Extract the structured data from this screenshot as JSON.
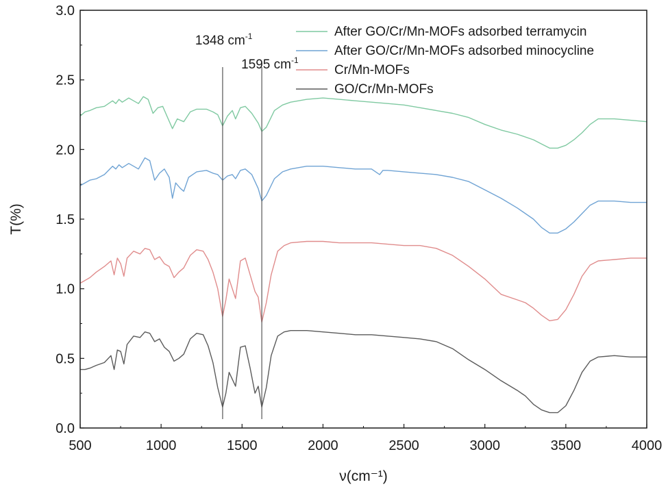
{
  "chart_data": {
    "type": "line",
    "title": "",
    "xlabel": "ν(cm⁻¹)",
    "ylabel": "T(%)",
    "xlim": [
      500,
      4000
    ],
    "ylim": [
      0.0,
      3.0
    ],
    "x_ticks": [
      "500",
      "1000",
      "1500",
      "2000",
      "2500",
      "3000",
      "3500",
      "4000"
    ],
    "y_ticks": [
      "0.0",
      "0.5",
      "1.0",
      "1.5",
      "2.0",
      "2.5",
      "3.0"
    ],
    "grid": false,
    "legend_position": "top-right",
    "annotations": [
      {
        "label": "1348 cm",
        "sup": "-1",
        "x": 1380
      },
      {
        "label": "1595 cm",
        "sup": "-1",
        "x": 1622
      }
    ],
    "series": [
      {
        "name": "After GO/Cr/Mn-MOFs adsorbed terramycin",
        "color": "#7fc9a1",
        "points": [
          [
            500,
            2.24
          ],
          [
            530,
            2.27
          ],
          [
            560,
            2.28
          ],
          [
            600,
            2.3
          ],
          [
            650,
            2.31
          ],
          [
            700,
            2.35
          ],
          [
            720,
            2.33
          ],
          [
            740,
            2.36
          ],
          [
            760,
            2.34
          ],
          [
            800,
            2.37
          ],
          [
            830,
            2.35
          ],
          [
            860,
            2.33
          ],
          [
            890,
            2.38
          ],
          [
            920,
            2.36
          ],
          [
            950,
            2.26
          ],
          [
            980,
            2.3
          ],
          [
            1010,
            2.31
          ],
          [
            1040,
            2.23
          ],
          [
            1070,
            2.15
          ],
          [
            1100,
            2.22
          ],
          [
            1140,
            2.2
          ],
          [
            1180,
            2.27
          ],
          [
            1220,
            2.29
          ],
          [
            1280,
            2.29
          ],
          [
            1320,
            2.27
          ],
          [
            1350,
            2.25
          ],
          [
            1380,
            2.17
          ],
          [
            1410,
            2.24
          ],
          [
            1440,
            2.28
          ],
          [
            1460,
            2.22
          ],
          [
            1490,
            2.3
          ],
          [
            1520,
            2.31
          ],
          [
            1560,
            2.26
          ],
          [
            1600,
            2.19
          ],
          [
            1622,
            2.13
          ],
          [
            1650,
            2.16
          ],
          [
            1700,
            2.28
          ],
          [
            1750,
            2.32
          ],
          [
            1800,
            2.34
          ],
          [
            1900,
            2.36
          ],
          [
            2000,
            2.37
          ],
          [
            2100,
            2.36
          ],
          [
            2200,
            2.35
          ],
          [
            2300,
            2.34
          ],
          [
            2400,
            2.33
          ],
          [
            2500,
            2.32
          ],
          [
            2600,
            2.3
          ],
          [
            2700,
            2.28
          ],
          [
            2800,
            2.26
          ],
          [
            2900,
            2.23
          ],
          [
            3000,
            2.18
          ],
          [
            3100,
            2.14
          ],
          [
            3200,
            2.11
          ],
          [
            3300,
            2.07
          ],
          [
            3350,
            2.04
          ],
          [
            3400,
            2.01
          ],
          [
            3450,
            2.01
          ],
          [
            3500,
            2.03
          ],
          [
            3550,
            2.07
          ],
          [
            3600,
            2.12
          ],
          [
            3650,
            2.18
          ],
          [
            3700,
            2.22
          ],
          [
            3800,
            2.22
          ],
          [
            3900,
            2.21
          ],
          [
            4000,
            2.2
          ]
        ]
      },
      {
        "name": "After GO/Cr/Mn-MOFs adsorbed minocycline",
        "color": "#6fa3d4",
        "points": [
          [
            500,
            1.74
          ],
          [
            530,
            1.76
          ],
          [
            560,
            1.78
          ],
          [
            600,
            1.79
          ],
          [
            650,
            1.82
          ],
          [
            700,
            1.88
          ],
          [
            720,
            1.86
          ],
          [
            740,
            1.89
          ],
          [
            760,
            1.87
          ],
          [
            800,
            1.9
          ],
          [
            830,
            1.88
          ],
          [
            860,
            1.86
          ],
          [
            900,
            1.94
          ],
          [
            930,
            1.92
          ],
          [
            960,
            1.78
          ],
          [
            990,
            1.83
          ],
          [
            1020,
            1.86
          ],
          [
            1050,
            1.8
          ],
          [
            1070,
            1.65
          ],
          [
            1090,
            1.76
          ],
          [
            1120,
            1.72
          ],
          [
            1140,
            1.7
          ],
          [
            1170,
            1.8
          ],
          [
            1220,
            1.84
          ],
          [
            1280,
            1.85
          ],
          [
            1320,
            1.83
          ],
          [
            1350,
            1.82
          ],
          [
            1380,
            1.78
          ],
          [
            1410,
            1.81
          ],
          [
            1440,
            1.82
          ],
          [
            1460,
            1.79
          ],
          [
            1490,
            1.85
          ],
          [
            1520,
            1.86
          ],
          [
            1560,
            1.82
          ],
          [
            1600,
            1.72
          ],
          [
            1622,
            1.63
          ],
          [
            1650,
            1.67
          ],
          [
            1700,
            1.79
          ],
          [
            1750,
            1.84
          ],
          [
            1800,
            1.86
          ],
          [
            1900,
            1.88
          ],
          [
            2000,
            1.88
          ],
          [
            2100,
            1.87
          ],
          [
            2200,
            1.86
          ],
          [
            2300,
            1.86
          ],
          [
            2350,
            1.82
          ],
          [
            2370,
            1.85
          ],
          [
            2400,
            1.85
          ],
          [
            2500,
            1.84
          ],
          [
            2600,
            1.83
          ],
          [
            2700,
            1.82
          ],
          [
            2800,
            1.8
          ],
          [
            2900,
            1.77
          ],
          [
            3000,
            1.71
          ],
          [
            3100,
            1.65
          ],
          [
            3200,
            1.58
          ],
          [
            3300,
            1.5
          ],
          [
            3350,
            1.44
          ],
          [
            3400,
            1.4
          ],
          [
            3450,
            1.4
          ],
          [
            3500,
            1.43
          ],
          [
            3550,
            1.48
          ],
          [
            3600,
            1.54
          ],
          [
            3650,
            1.6
          ],
          [
            3700,
            1.63
          ],
          [
            3800,
            1.63
          ],
          [
            3900,
            1.62
          ],
          [
            4000,
            1.62
          ]
        ]
      },
      {
        "name": "Cr/Mn-MOFs",
        "color": "#e08c8c",
        "points": [
          [
            500,
            1.04
          ],
          [
            530,
            1.06
          ],
          [
            560,
            1.08
          ],
          [
            600,
            1.12
          ],
          [
            650,
            1.16
          ],
          [
            690,
            1.2
          ],
          [
            710,
            1.1
          ],
          [
            730,
            1.22
          ],
          [
            750,
            1.18
          ],
          [
            770,
            1.09
          ],
          [
            790,
            1.22
          ],
          [
            830,
            1.27
          ],
          [
            870,
            1.25
          ],
          [
            900,
            1.29
          ],
          [
            930,
            1.28
          ],
          [
            960,
            1.21
          ],
          [
            990,
            1.23
          ],
          [
            1020,
            1.18
          ],
          [
            1050,
            1.16
          ],
          [
            1080,
            1.08
          ],
          [
            1110,
            1.12
          ],
          [
            1140,
            1.15
          ],
          [
            1180,
            1.24
          ],
          [
            1220,
            1.28
          ],
          [
            1260,
            1.27
          ],
          [
            1290,
            1.21
          ],
          [
            1320,
            1.12
          ],
          [
            1350,
            1.0
          ],
          [
            1380,
            0.8
          ],
          [
            1400,
            0.92
          ],
          [
            1420,
            1.07
          ],
          [
            1440,
            1.0
          ],
          [
            1460,
            0.93
          ],
          [
            1490,
            1.2
          ],
          [
            1520,
            1.22
          ],
          [
            1550,
            1.1
          ],
          [
            1580,
            0.98
          ],
          [
            1600,
            0.94
          ],
          [
            1622,
            0.76
          ],
          [
            1650,
            0.9
          ],
          [
            1680,
            1.1
          ],
          [
            1720,
            1.27
          ],
          [
            1760,
            1.31
          ],
          [
            1800,
            1.33
          ],
          [
            1900,
            1.34
          ],
          [
            2000,
            1.34
          ],
          [
            2100,
            1.33
          ],
          [
            2200,
            1.33
          ],
          [
            2300,
            1.33
          ],
          [
            2400,
            1.32
          ],
          [
            2500,
            1.31
          ],
          [
            2600,
            1.31
          ],
          [
            2700,
            1.29
          ],
          [
            2800,
            1.24
          ],
          [
            2900,
            1.16
          ],
          [
            3000,
            1.07
          ],
          [
            3100,
            0.96
          ],
          [
            3200,
            0.92
          ],
          [
            3250,
            0.9
          ],
          [
            3300,
            0.86
          ],
          [
            3350,
            0.81
          ],
          [
            3400,
            0.77
          ],
          [
            3450,
            0.78
          ],
          [
            3500,
            0.85
          ],
          [
            3550,
            0.96
          ],
          [
            3600,
            1.09
          ],
          [
            3650,
            1.17
          ],
          [
            3700,
            1.2
          ],
          [
            3800,
            1.21
          ],
          [
            3900,
            1.22
          ],
          [
            4000,
            1.22
          ]
        ]
      },
      {
        "name": "GO/Cr/Mn-MOFs",
        "color": "#5a5a5a",
        "points": [
          [
            500,
            0.42
          ],
          [
            530,
            0.42
          ],
          [
            560,
            0.43
          ],
          [
            600,
            0.45
          ],
          [
            650,
            0.47
          ],
          [
            690,
            0.52
          ],
          [
            710,
            0.42
          ],
          [
            730,
            0.56
          ],
          [
            750,
            0.55
          ],
          [
            770,
            0.46
          ],
          [
            790,
            0.6
          ],
          [
            830,
            0.66
          ],
          [
            870,
            0.65
          ],
          [
            900,
            0.69
          ],
          [
            930,
            0.68
          ],
          [
            960,
            0.62
          ],
          [
            990,
            0.64
          ],
          [
            1020,
            0.58
          ],
          [
            1050,
            0.55
          ],
          [
            1080,
            0.48
          ],
          [
            1110,
            0.5
          ],
          [
            1140,
            0.53
          ],
          [
            1180,
            0.64
          ],
          [
            1220,
            0.68
          ],
          [
            1260,
            0.67
          ],
          [
            1290,
            0.59
          ],
          [
            1320,
            0.47
          ],
          [
            1350,
            0.29
          ],
          [
            1380,
            0.15
          ],
          [
            1400,
            0.25
          ],
          [
            1420,
            0.4
          ],
          [
            1440,
            0.35
          ],
          [
            1460,
            0.3
          ],
          [
            1490,
            0.58
          ],
          [
            1520,
            0.59
          ],
          [
            1550,
            0.43
          ],
          [
            1580,
            0.25
          ],
          [
            1600,
            0.3
          ],
          [
            1622,
            0.15
          ],
          [
            1650,
            0.29
          ],
          [
            1680,
            0.52
          ],
          [
            1720,
            0.66
          ],
          [
            1760,
            0.69
          ],
          [
            1800,
            0.7
          ],
          [
            1900,
            0.7
          ],
          [
            2000,
            0.69
          ],
          [
            2100,
            0.68
          ],
          [
            2200,
            0.67
          ],
          [
            2300,
            0.67
          ],
          [
            2400,
            0.66
          ],
          [
            2500,
            0.65
          ],
          [
            2600,
            0.64
          ],
          [
            2700,
            0.62
          ],
          [
            2800,
            0.57
          ],
          [
            2900,
            0.49
          ],
          [
            3000,
            0.42
          ],
          [
            3100,
            0.34
          ],
          [
            3200,
            0.27
          ],
          [
            3250,
            0.23
          ],
          [
            3300,
            0.17
          ],
          [
            3350,
            0.13
          ],
          [
            3400,
            0.11
          ],
          [
            3450,
            0.11
          ],
          [
            3500,
            0.16
          ],
          [
            3550,
            0.27
          ],
          [
            3600,
            0.4
          ],
          [
            3650,
            0.48
          ],
          [
            3700,
            0.51
          ],
          [
            3800,
            0.52
          ],
          [
            3900,
            0.51
          ],
          [
            4000,
            0.51
          ]
        ]
      }
    ]
  }
}
